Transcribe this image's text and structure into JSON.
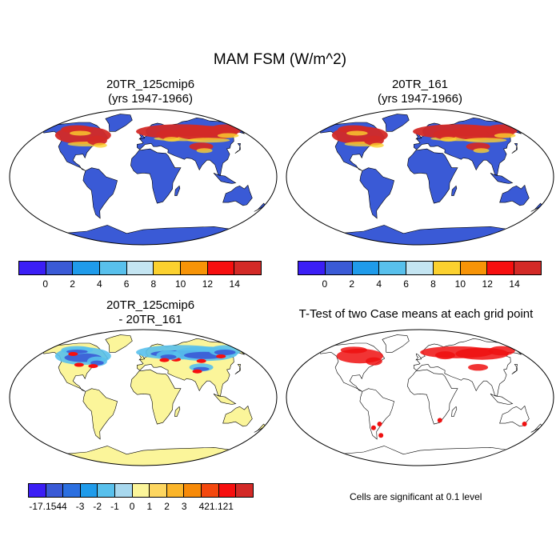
{
  "main_title": "MAM FSM (W/m^2)",
  "panels": [
    {
      "title_line1": "20TR_125cmip6",
      "title_line2": "(yrs 1947-1966)",
      "style": "abs"
    },
    {
      "title_line1": "20TR_161",
      "title_line2": "(yrs 1947-1966)",
      "style": "abs"
    },
    {
      "title_line1": "20TR_125cmip6",
      "title_line2": "- 20TR_161",
      "style": "diff"
    },
    {
      "title_line1": "T-Test of two Case means at each grid point",
      "title_line2": "",
      "style": "ttest"
    }
  ],
  "colorbar_abs": {
    "colors": [
      "#3b1ef5",
      "#3a5ad6",
      "#1f9bea",
      "#58c0ec",
      "#c4e5f2",
      "#fbd12f",
      "#f79407",
      "#f70f0f",
      "#d32a27"
    ],
    "ticks": [
      "0",
      "2",
      "4",
      "6",
      "8",
      "10",
      "12",
      "14"
    ]
  },
  "colorbar_diff": {
    "colors": [
      "#3b1ef5",
      "#3a5ad6",
      "#2b6fe0",
      "#1f9bea",
      "#58c0ec",
      "#a8d8ee",
      "#fbf59a",
      "#fdd660",
      "#fbb52a",
      "#f78a08",
      "#f4480e",
      "#f70f0f",
      "#d32a27"
    ],
    "ticks": [
      "-17.154",
      "-4",
      "-3",
      "-2",
      "-1",
      "0",
      "1",
      "2",
      "3",
      "4",
      "21.121"
    ]
  },
  "ttest_note": "Cells are significant at 0.1 level"
}
